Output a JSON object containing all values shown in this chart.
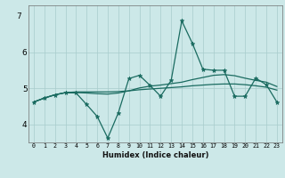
{
  "xlabel": "Humidex (Indice chaleur)",
  "bg_color": "#cce8e8",
  "grid_color": "#a8cccc",
  "line_color": "#1a6b60",
  "x_ticks": [
    0,
    1,
    2,
    3,
    4,
    5,
    6,
    7,
    8,
    9,
    10,
    11,
    12,
    13,
    14,
    15,
    16,
    17,
    18,
    19,
    20,
    21,
    22,
    23
  ],
  "ylim": [
    3.5,
    7.3
  ],
  "ytick_vals": [
    4,
    5,
    6
  ],
  "ytick_labels": [
    "4",
    "5",
    "6"
  ],
  "ytop_label": "7",
  "series1_y": [
    4.62,
    4.73,
    4.82,
    4.88,
    4.9,
    4.9,
    4.9,
    4.9,
    4.91,
    4.93,
    4.96,
    4.98,
    5.0,
    5.02,
    5.04,
    5.07,
    5.09,
    5.11,
    5.12,
    5.12,
    5.1,
    5.07,
    5.03,
    4.95
  ],
  "series2_y": [
    4.62,
    4.73,
    4.82,
    4.88,
    4.88,
    4.87,
    4.85,
    4.84,
    4.87,
    4.93,
    5.01,
    5.06,
    5.09,
    5.13,
    5.17,
    5.24,
    5.3,
    5.36,
    5.38,
    5.35,
    5.28,
    5.22,
    5.17,
    5.05
  ],
  "series3_y": [
    4.62,
    4.73,
    4.82,
    4.88,
    4.87,
    4.55,
    4.22,
    3.62,
    4.32,
    5.27,
    5.36,
    5.08,
    4.78,
    5.22,
    6.87,
    6.25,
    5.53,
    5.5,
    5.5,
    4.78,
    4.78,
    5.28,
    5.1,
    4.62
  ]
}
